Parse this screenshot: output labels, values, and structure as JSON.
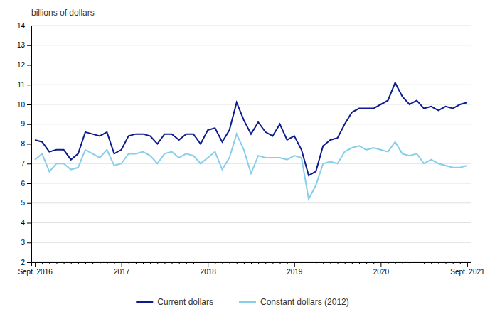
{
  "chart_data": {
    "type": "line",
    "ylabel": "billions of dollars",
    "categories": [
      "Sept. 2016",
      null,
      null,
      null,
      null,
      null,
      null,
      null,
      null,
      null,
      null,
      null,
      "2017",
      null,
      null,
      null,
      null,
      null,
      null,
      null,
      null,
      null,
      null,
      null,
      "2018",
      null,
      null,
      null,
      null,
      null,
      null,
      null,
      null,
      null,
      null,
      null,
      "2019",
      null,
      null,
      null,
      null,
      null,
      null,
      null,
      null,
      null,
      null,
      null,
      "2020",
      null,
      null,
      null,
      null,
      null,
      null,
      null,
      null,
      null,
      null,
      null,
      "Sept. 2021"
    ],
    "series": [
      {
        "name": "Current dollars",
        "color": "#0d1b8e",
        "values": [
          8.2,
          8.1,
          7.6,
          7.7,
          7.7,
          7.2,
          7.5,
          8.6,
          8.5,
          8.4,
          8.6,
          7.5,
          7.7,
          8.4,
          8.5,
          8.5,
          8.4,
          8.0,
          8.5,
          8.5,
          8.2,
          8.5,
          8.5,
          8.0,
          8.7,
          8.8,
          8.1,
          8.7,
          10.1,
          9.2,
          8.5,
          9.1,
          8.6,
          8.4,
          9.0,
          8.2,
          8.4,
          7.7,
          6.4,
          6.6,
          7.9,
          8.2,
          8.3,
          9.0,
          9.6,
          9.8,
          9.8,
          9.8,
          10.0,
          10.2,
          11.1,
          10.4,
          10.0,
          10.2,
          9.8,
          9.9,
          9.7,
          9.9,
          9.8,
          10.0,
          10.1
        ]
      },
      {
        "name": "Constant dollars (2012)",
        "color": "#87CEEB",
        "values": [
          7.2,
          7.5,
          6.6,
          7.0,
          7.0,
          6.7,
          6.8,
          7.7,
          7.5,
          7.3,
          7.7,
          6.9,
          7.0,
          7.5,
          7.5,
          7.6,
          7.4,
          7.0,
          7.5,
          7.6,
          7.3,
          7.5,
          7.4,
          7.0,
          7.3,
          7.6,
          6.7,
          7.3,
          8.5,
          7.7,
          6.5,
          7.4,
          7.3,
          7.3,
          7.3,
          7.2,
          7.4,
          7.3,
          5.2,
          5.9,
          7.0,
          7.1,
          7.0,
          7.6,
          7.8,
          7.9,
          7.7,
          7.8,
          7.7,
          7.6,
          8.1,
          7.5,
          7.4,
          7.5,
          7.0,
          7.2,
          7.0,
          6.9,
          6.8,
          6.8,
          6.9
        ]
      }
    ],
    "ylim": [
      2,
      14
    ],
    "yticks": [
      2,
      3,
      4,
      5,
      6,
      7,
      8,
      9,
      10,
      11,
      12,
      13,
      14
    ],
    "grid": true,
    "legend": "bottom"
  }
}
